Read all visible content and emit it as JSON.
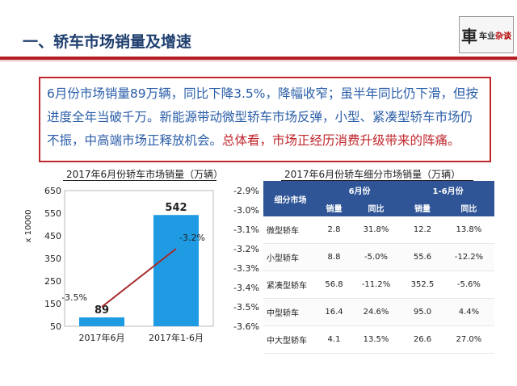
{
  "header": {
    "title": "一、轿车市场销量及增速",
    "logo_text": "車车业杂谈"
  },
  "summary": {
    "text_main": "6月份市场销量89万辆，同比下降3.5%，降幅收窄；虽半年同比仍下滑，但按进度全年当破千万。新能源带动微型轿车市场反弹，小型、紧凑型轿车市场仍不振，中高端市场正释放机会。",
    "text_em": "总体看，市场正经历消费升级带来的阵痛。"
  },
  "chart_title": "2017年6月份轿车市场销量（万辆）",
  "chart_data": {
    "type": "bar",
    "categories": [
      "2017年6月",
      "2017年1-6月"
    ],
    "values": [
      89,
      542
    ],
    "value_labels": [
      "89",
      "542"
    ],
    "ylabel": "x 10000",
    "ylim": [
      50,
      650
    ],
    "yticks": [
      650,
      550,
      450,
      350,
      250,
      150,
      50
    ],
    "y2lim": [
      -3.6,
      -2.9
    ],
    "y2ticks": [
      "-2.9%",
      "-3.0%",
      "-3.1%",
      "-3.2%",
      "-3.3%",
      "-3.4%",
      "-3.5%",
      "-3.6%"
    ],
    "line": {
      "values": [
        -3.5,
        -3.2
      ],
      "labels": [
        "-3.5%",
        "-3.2%"
      ]
    },
    "bar_color": "#1e9be3",
    "line_color": "#a52a2a",
    "grid": false
  },
  "table_title": "2017年6月份轿车细分市场销量（万辆）",
  "table": {
    "header_cat": "细分市场",
    "group1": "6月份",
    "group2": "1-6月份",
    "sub": [
      "销量",
      "同比",
      "销量",
      "同比"
    ],
    "rows": [
      {
        "name": "微型轿车",
        "v1": "2.8",
        "y1": "31.8%",
        "v2": "12.2",
        "y2": "13.8%"
      },
      {
        "name": "小型轿车",
        "v1": "8.8",
        "y1": "-5.0%",
        "v2": "55.6",
        "y2": "-12.2%"
      },
      {
        "name": "紧凑型轿车",
        "v1": "56.8",
        "y1": "-11.2%",
        "v2": "352.5",
        "y2": "-5.6%"
      },
      {
        "name": "中型轿车",
        "v1": "16.4",
        "y1": "24.6%",
        "v2": "95.0",
        "y2": "4.4%"
      },
      {
        "name": "中大型轿车",
        "v1": "4.1",
        "y1": "13.5%",
        "v2": "26.6",
        "y2": "27.0%"
      }
    ]
  },
  "watermark_text": "車车业杂谈"
}
